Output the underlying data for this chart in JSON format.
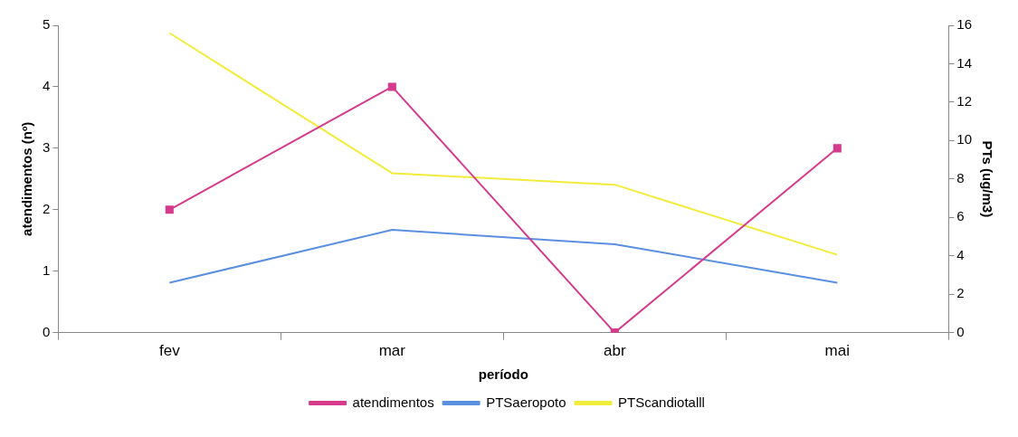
{
  "chart_data": {
    "type": "line",
    "xlabel": "período",
    "ylabel": "atendimentos (nº)",
    "y2label": "PTs (ug/m3)",
    "categories": [
      "fev",
      "mar",
      "abr",
      "mai"
    ],
    "series": [
      {
        "name": "atendimentos",
        "color": "#d63a8c",
        "values": [
          2,
          4,
          0,
          3
        ],
        "marker": "square"
      },
      {
        "name": "PTSaeropoto",
        "color": "#5b8fe0",
        "values": [
          2.6,
          5.35,
          4.6,
          2.6
        ],
        "axis": "y2",
        "marker": "none"
      },
      {
        "name": "PTScandiotalll",
        "color": "#f2ec3c",
        "values": [
          15.6,
          8.3,
          7.7,
          4.05
        ],
        "axis": "y2",
        "marker": "none"
      }
    ],
    "ylim": [
      0,
      5
    ],
    "yticks": [
      0,
      1,
      2,
      3,
      4,
      5
    ],
    "y2lim": [
      0,
      16
    ],
    "y2ticks": [
      0,
      2,
      4,
      6,
      8,
      10,
      12,
      14,
      16
    ],
    "grid": false,
    "legend": "bottom"
  }
}
